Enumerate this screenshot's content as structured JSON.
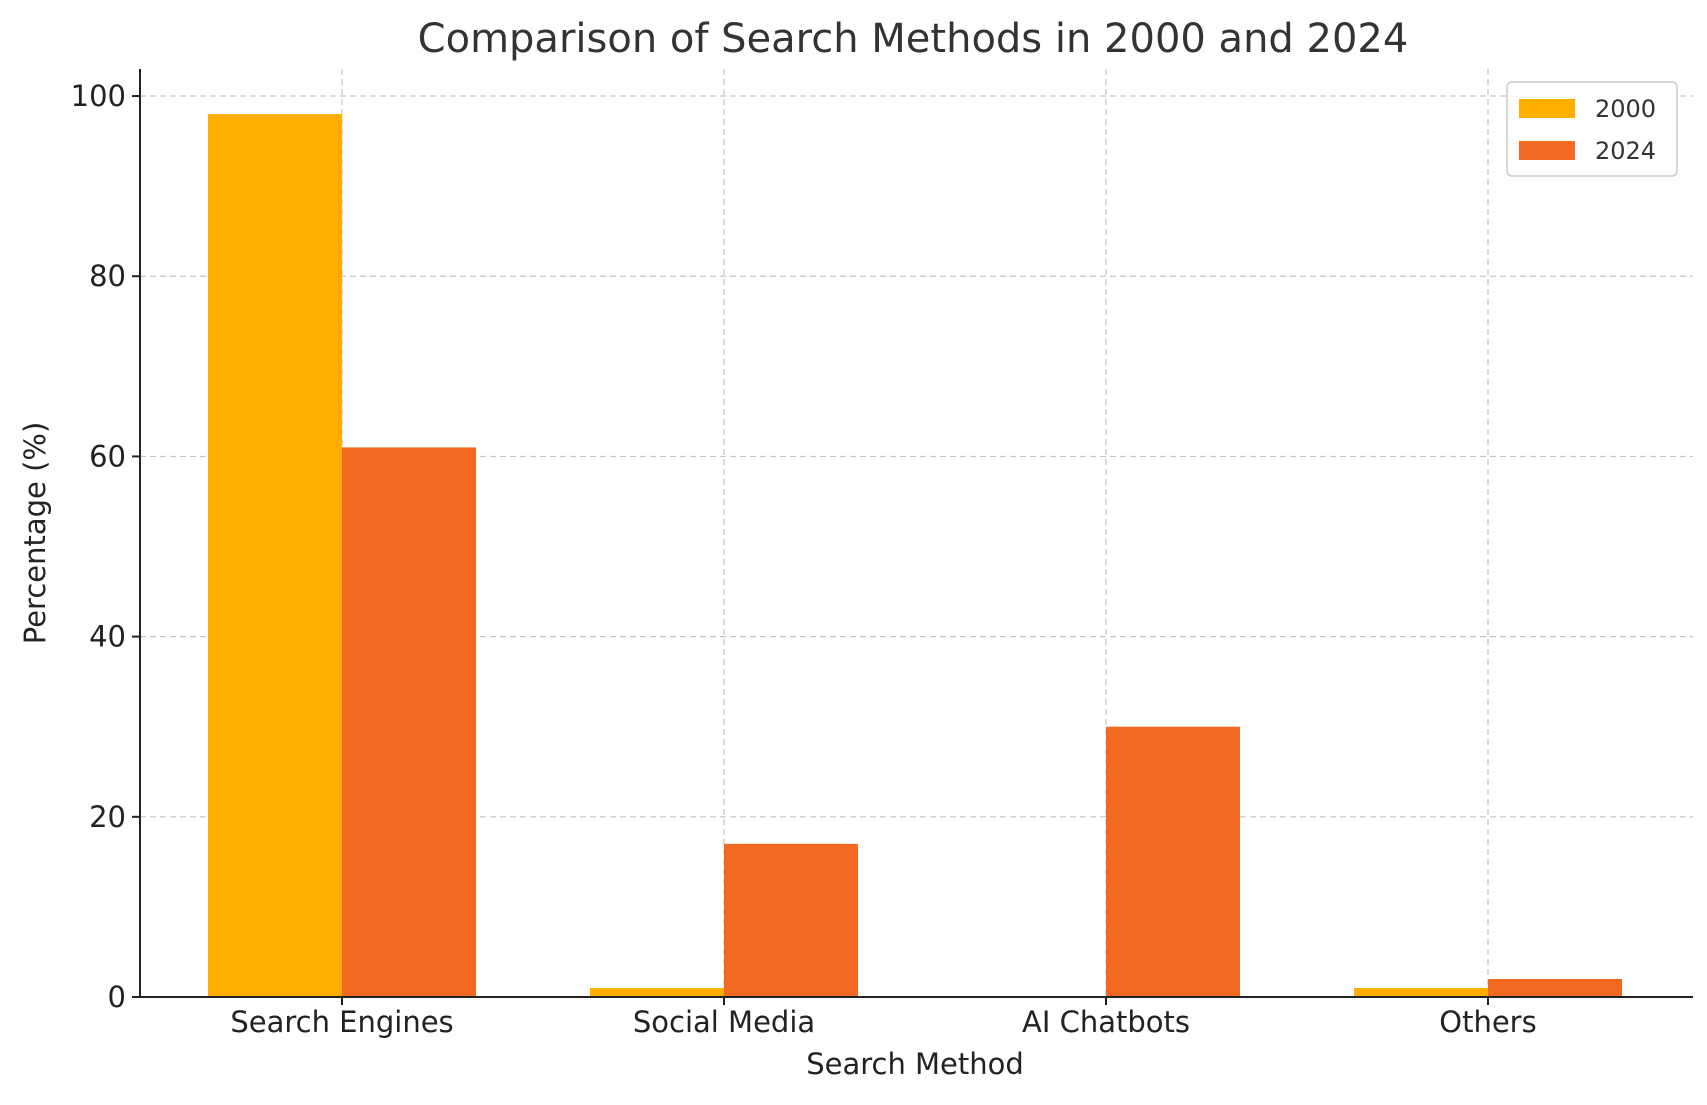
{
  "chart_data": {
    "type": "bar",
    "title": "Comparison of Search Methods in 2000 and 2024",
    "xlabel": "Search Method",
    "ylabel": "Percentage (%)",
    "categories": [
      "Search Engines",
      "Social Media",
      "AI Chatbots",
      "Others"
    ],
    "series": [
      {
        "name": "2000",
        "values": [
          98,
          1,
          0,
          1
        ],
        "color": "#FFAE00"
      },
      {
        "name": "2024",
        "values": [
          61,
          17,
          30,
          2
        ],
        "color": "#F26A22"
      }
    ],
    "ylim": [
      0,
      103
    ],
    "yticks": [
      0,
      20,
      40,
      60,
      80,
      100
    ],
    "grid": true,
    "legend_position": "top-right"
  }
}
